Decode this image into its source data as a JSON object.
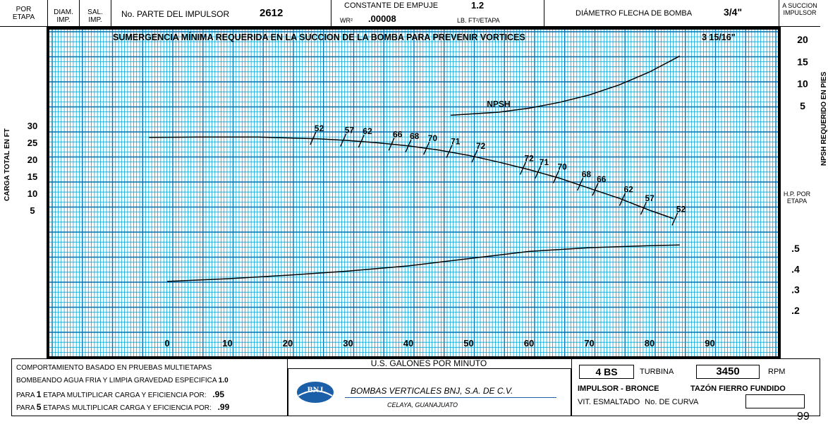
{
  "header": {
    "por_etapa": "POR ETAPA",
    "diam_imp": "DIAM. IMP.",
    "sal_imp": "SAL. IMP.",
    "part_label": "No. PARTE DEL IMPULSOR",
    "part_value": "2612",
    "thrust_label": "CONSTANTE DE EMPUJE",
    "thrust_value": "1.2",
    "wr_label": "WR²",
    "wr_value": ".00008",
    "wr_unit": "LB. FT²/ETAPA",
    "shaft_label": "DIÁMETRO FLECHA DE BOMBA",
    "shaft_value": "3/4\"",
    "suction_label": "A SUCCION IMPULSOR"
  },
  "chart_data": {
    "type": "line",
    "title": "SUMERGENCIA MÍNIMA REQUERIDA EN LA SUCCION DE LA BOMBA PARA PREVENIR VORTICES",
    "title_value": "3 15/16\"",
    "xlabel": "U.S. GALONES POR MINUTO",
    "xlim": [
      0,
      90
    ],
    "x_ticks": [
      "0",
      "10",
      "20",
      "30",
      "40",
      "50",
      "60",
      "70",
      "80",
      "90"
    ],
    "y_left_label": "CARGA TOTAL EN FT",
    "y_left_ticks": [
      "30",
      "25",
      "20",
      "15",
      "10",
      "5"
    ],
    "y_right_upper_label": "NPSH REQUERIDO EN PIES",
    "y_right_upper_ticks": [
      "20",
      "15",
      "10",
      "5"
    ],
    "y_right_lower_label": "H.P. POR ETAPA",
    "y_right_lower_ticks": [
      ".5",
      ".4",
      ".3",
      ".2"
    ],
    "grid": true,
    "series": [
      {
        "name": "head",
        "x": [
          -3,
          5,
          15,
          25,
          30,
          35,
          40,
          45,
          50,
          55,
          60,
          65,
          70,
          75,
          80,
          84
        ],
        "y": [
          26.5,
          26.6,
          26.6,
          26.1,
          25.6,
          24.9,
          24.0,
          22.8,
          21.2,
          19.2,
          17.0,
          14.5,
          11.5,
          8.5,
          5.0,
          2.5
        ]
      },
      {
        "name": "NPSH",
        "x": [
          47,
          55,
          60,
          65,
          70,
          75,
          80,
          85
        ],
        "y": [
          2.7,
          3.4,
          4.3,
          5.6,
          7.3,
          9.6,
          12.5,
          16.1
        ]
      },
      {
        "name": "hp",
        "x": [
          0,
          10,
          20,
          30,
          40,
          50,
          60,
          70,
          80,
          85
        ],
        "y": [
          0.34,
          0.353,
          0.37,
          0.39,
          0.415,
          0.45,
          0.485,
          0.503,
          0.513,
          0.516
        ]
      }
    ],
    "efficiency_marks": [
      {
        "label": "52",
        "x": 24.2,
        "y": 26.2
      },
      {
        "label": "57",
        "x": 29.2,
        "y": 25.7
      },
      {
        "label": "62",
        "x": 32.2,
        "y": 25.4
      },
      {
        "label": "66",
        "x": 37.2,
        "y": 24.5
      },
      {
        "label": "68",
        "x": 40.0,
        "y": 24.0
      },
      {
        "label": "70",
        "x": 43.0,
        "y": 23.3
      },
      {
        "label": "71",
        "x": 46.8,
        "y": 22.4
      },
      {
        "label": "72",
        "x": 51.0,
        "y": 21.0
      },
      {
        "label": "72",
        "x": 59.0,
        "y": 17.4
      },
      {
        "label": "71",
        "x": 61.5,
        "y": 16.3
      },
      {
        "label": "70",
        "x": 64.5,
        "y": 14.9
      },
      {
        "label": "68",
        "x": 68.5,
        "y": 12.7
      },
      {
        "label": "66",
        "x": 71.0,
        "y": 11.2
      },
      {
        "label": "62",
        "x": 75.5,
        "y": 8.2
      },
      {
        "label": "57",
        "x": 79.0,
        "y": 5.6
      },
      {
        "label": "52",
        "x": 84.2,
        "y": 2.4
      }
    ]
  },
  "footer": {
    "line1": "COMPORTAMIENTO BASADO EN PRUEBAS MULTIETAPAS",
    "line2": "BOMBEANDO AGUA FRIA Y LIMPIA GRAVEDAD ESPECIFICA",
    "line2_value": "1.0",
    "line3_prefix": "PARA",
    "line3_num": "1",
    "line3_text": "ETAPA MULTIPLICAR CARGA Y EFICIENCIA POR:",
    "line3_value": ".95",
    "line4_prefix": "PARA",
    "line4_num": "5",
    "line4_text": "ETAPAS MULTIPLICAR CARGA Y EFICIENCIA POR:",
    "line4_value": ".99",
    "logo_text": "BNJ",
    "company": "BOMBAS VERTICALES BNJ, S.A. DE C.V.",
    "city": "CELAYA, GUANAJUATO",
    "model": "4 BS",
    "turbina": "TURBINA",
    "rpm_value": "3450",
    "rpm": "RPM",
    "impulsor": "IMPULSOR - BRONCE",
    "tazon": "TAZÓN FIERRO FUNDIDO",
    "vit": "VIT. ESMALTADO",
    "curva": "No. DE CURVA",
    "page_number": "99"
  },
  "colors": {
    "grid": "#00a5d6",
    "grid_major": "#0072b0",
    "frame": "#000000",
    "logo_blue": "#1a5fa8"
  }
}
